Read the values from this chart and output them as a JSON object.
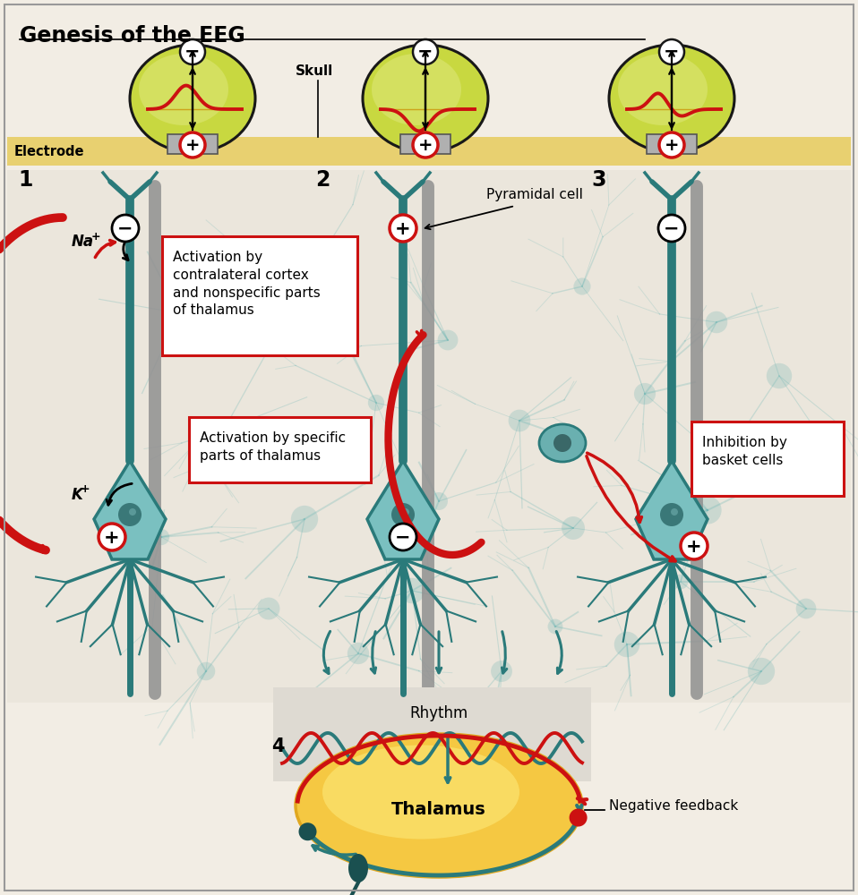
{
  "title": "Genesis of the EEG",
  "bg_color": "#f2ede4",
  "cell_bg": "#e8e2d8",
  "teal": "#2a7a7a",
  "dark_teal": "#1a5050",
  "teal_light": "#5aadad",
  "red": "#cc1111",
  "orange_red": "#dd4400",
  "gray_fiber": "#888888",
  "skull_band": "#e8d070",
  "cell_fill": "#8bbfbf",
  "cell_outline": "#2a7a7a",
  "soma_fill": "#7ab8b8",
  "nucleus_fill": "#3a6868",
  "box1_text": "Activation by\ncontralateral cortex\nand nonspecific parts\nof thalamus",
  "box2_text": "Activation by specific\nparts of thalamus",
  "box3_text": "Inhibition by\nbasket cells",
  "thalamus_text": "Thalamus",
  "rhythm_text": "Rhythm",
  "neg_feedback_text": "Negative feedback",
  "pyramidal_text": "Pyramidal cell",
  "electrode_text": "Electrode",
  "skull_text": "Skull",
  "na_text": "Na+",
  "k_text": "K+",
  "label1": "1",
  "label2": "2",
  "label3": "3",
  "label4": "4",
  "thalamus_color": "#f5c842",
  "thalamus_edge": "#e0a820",
  "rhythm_bg": "#dedad2"
}
